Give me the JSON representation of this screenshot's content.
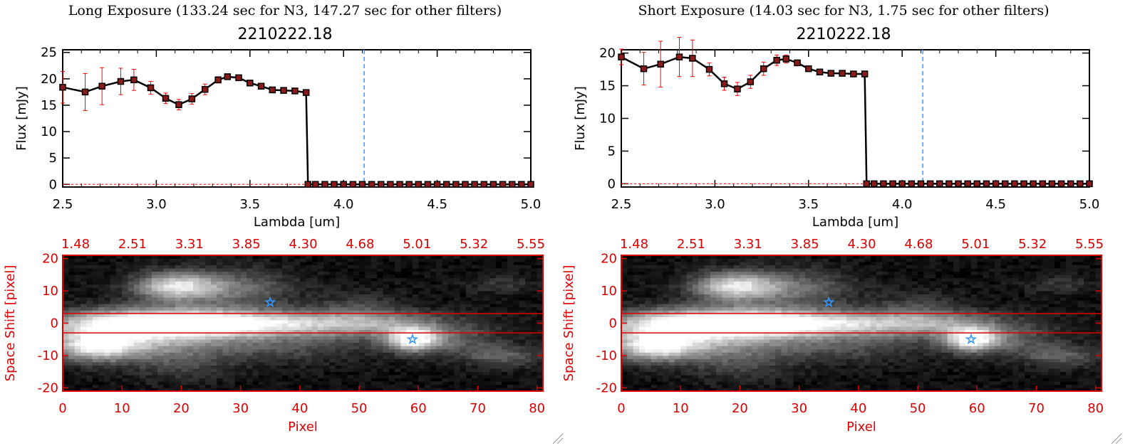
{
  "panels": [
    {
      "exposure_title": "Long Exposure (133.24 sec for N3, 147.27 sec for other filters)",
      "plot_title": "2210222.18"
    },
    {
      "exposure_title": "Short Exposure (14.03 sec for N3, 1.75 sec for other filters)",
      "plot_title": "2210222.18"
    }
  ],
  "colors": {
    "marker": "#8b1a1a",
    "errorbar": "#ff0000",
    "line": "#000000",
    "vline": "#3399ff",
    "zero_line": "#ff0000",
    "image_frame": "#dd0000",
    "star": "#3399ff"
  },
  "chart_data": [
    {
      "type": "line",
      "title": "2210222.18",
      "xlabel": "Lambda [um]",
      "ylabel": "Flux [mJy]",
      "xlim": [
        2.5,
        5.0
      ],
      "ylim": [
        -0.5,
        25.5
      ],
      "xticks": [
        "2.5",
        "3.0",
        "3.5",
        "4.0",
        "4.5",
        "5.0"
      ],
      "yticks": [
        "0",
        "5",
        "10",
        "15",
        "20",
        "25"
      ],
      "vline_x": 4.11,
      "grid": false,
      "x": [
        2.5,
        2.62,
        2.71,
        2.81,
        2.88,
        2.97,
        3.05,
        3.12,
        3.19,
        3.26,
        3.33,
        3.38,
        3.44,
        3.5,
        3.56,
        3.62,
        3.68,
        3.74,
        3.8,
        3.81,
        3.85,
        3.9,
        3.95,
        4.0,
        4.05,
        4.1,
        4.15,
        4.2,
        4.25,
        4.3,
        4.35,
        4.4,
        4.45,
        4.5,
        4.55,
        4.6,
        4.65,
        4.7,
        4.75,
        4.8,
        4.85,
        4.9,
        4.95,
        5.0
      ],
      "y": [
        18.4,
        17.5,
        18.6,
        19.5,
        19.8,
        18.3,
        16.3,
        15.1,
        16.2,
        18.0,
        19.8,
        20.4,
        20.2,
        19.2,
        18.6,
        17.9,
        17.8,
        17.7,
        17.4,
        0,
        0,
        0,
        0,
        0,
        0,
        0,
        0,
        0,
        0,
        0,
        0,
        0,
        0,
        0,
        0,
        0,
        0,
        0,
        0,
        0,
        0,
        0,
        0,
        0
      ],
      "yerr": [
        3.0,
        3.5,
        3.5,
        2.5,
        2.0,
        1.2,
        1.0,
        1.0,
        1.0,
        1.0,
        0.6,
        0.4,
        0.4,
        0.4,
        0.3,
        0.3,
        0.3,
        0.3,
        0.3,
        0,
        0,
        0,
        0,
        0,
        0,
        0,
        0,
        0,
        0,
        0,
        0,
        0,
        0,
        0,
        0,
        0,
        0,
        0,
        0,
        0,
        0,
        0,
        0,
        0
      ],
      "image": {
        "xlabel": "Pixel",
        "ylabel": "Space Shift [pixel]",
        "xlim": [
          0,
          81
        ],
        "ylim": [
          -21,
          21
        ],
        "xticks": [
          "0",
          "10",
          "20",
          "30",
          "40",
          "50",
          "60",
          "70",
          "80"
        ],
        "yticks": [
          "-20",
          "-10",
          "0",
          "10",
          "20"
        ],
        "top_ticks": [
          "1.48",
          "2.51",
          "3.31",
          "3.85",
          "4.30",
          "4.68",
          "5.01",
          "5.32",
          "5.55"
        ],
        "aperture": [
          -3,
          3
        ],
        "stars": [
          [
            35,
            6.5
          ],
          [
            59,
            -5
          ]
        ]
      }
    },
    {
      "type": "line",
      "title": "2210222.18",
      "xlabel": "Lambda [um]",
      "ylabel": "Flux [mJy]",
      "xlim": [
        2.5,
        5.0
      ],
      "ylim": [
        -0.5,
        20.5
      ],
      "xticks": [
        "2.5",
        "3.0",
        "3.5",
        "4.0",
        "4.5",
        "5.0"
      ],
      "yticks": [
        "0",
        "5",
        "10",
        "15",
        "20"
      ],
      "vline_x": 4.11,
      "grid": false,
      "x": [
        2.5,
        2.62,
        2.71,
        2.81,
        2.88,
        2.97,
        3.05,
        3.12,
        3.19,
        3.26,
        3.33,
        3.38,
        3.44,
        3.5,
        3.56,
        3.62,
        3.68,
        3.74,
        3.8,
        3.81,
        3.85,
        3.9,
        3.95,
        4.0,
        4.05,
        4.1,
        4.15,
        4.2,
        4.25,
        4.3,
        4.35,
        4.4,
        4.45,
        4.5,
        4.55,
        4.6,
        4.65,
        4.7,
        4.75,
        4.8,
        4.85,
        4.9,
        4.95,
        5.0
      ],
      "y": [
        19.4,
        17.6,
        18.3,
        19.4,
        19.2,
        17.5,
        15.3,
        14.5,
        15.6,
        17.6,
        18.9,
        19.1,
        18.5,
        17.6,
        17.1,
        16.9,
        16.9,
        16.8,
        16.8,
        0,
        0,
        0,
        0,
        0,
        0,
        0,
        0,
        0,
        0,
        0,
        0,
        0,
        0,
        0,
        0,
        0,
        0,
        0,
        0,
        0,
        0,
        0,
        0,
        0
      ],
      "yerr": [
        1.2,
        2.5,
        3.5,
        3.0,
        2.8,
        1.0,
        1.0,
        1.0,
        1.0,
        1.0,
        0.8,
        0.6,
        0.3,
        0.3,
        0.3,
        0.3,
        0.3,
        0.3,
        0.3,
        0,
        0,
        0,
        0,
        0,
        0,
        0,
        0,
        0,
        0,
        0,
        0,
        0,
        0,
        0,
        0,
        0,
        0,
        0,
        0,
        0,
        0,
        0,
        0,
        0
      ],
      "image": {
        "xlabel": "Pixel",
        "ylabel": "Space Shift [pixel]",
        "xlim": [
          0,
          81
        ],
        "ylim": [
          -21,
          21
        ],
        "xticks": [
          "0",
          "10",
          "20",
          "30",
          "40",
          "50",
          "60",
          "70",
          "80"
        ],
        "yticks": [
          "-20",
          "-10",
          "0",
          "10",
          "20"
        ],
        "top_ticks": [
          "1.48",
          "2.51",
          "3.31",
          "3.85",
          "4.30",
          "4.68",
          "5.01",
          "5.32",
          "5.55"
        ],
        "aperture": [
          -3,
          3
        ],
        "stars": [
          [
            35,
            6.5
          ],
          [
            59,
            -5
          ]
        ]
      }
    }
  ]
}
